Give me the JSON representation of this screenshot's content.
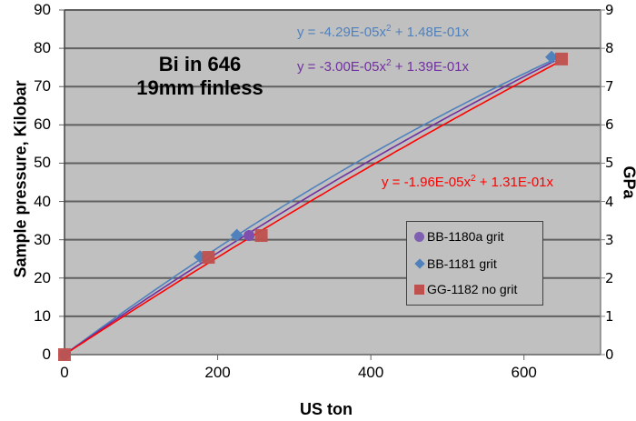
{
  "chart_data": {
    "type": "scatter",
    "title": "",
    "annotation": [
      "Bi in 646",
      "19mm finless"
    ],
    "xlabel": "US ton",
    "ylabel": "Sample pressure, Kilobar",
    "y2label": "GPa",
    "xlim": [
      0,
      700
    ],
    "ylim": [
      0,
      90
    ],
    "y2lim": [
      0,
      9
    ],
    "xticks": [
      0,
      200,
      400,
      600
    ],
    "yticks": [
      0,
      10,
      20,
      30,
      40,
      50,
      60,
      70,
      80,
      90
    ],
    "y2ticks": [
      0,
      1,
      2,
      3,
      4,
      5,
      6,
      7,
      8,
      9
    ],
    "grid": "horizontal",
    "background": "#c0c0c0",
    "legend_position": "lower right inside",
    "series": [
      {
        "name": "BB-1180a grit",
        "marker": "circle",
        "color": "#7f4fb0",
        "line_color": "#7030a0",
        "points": [
          [
            0,
            0
          ],
          [
            241,
            31.1
          ]
        ],
        "trend": {
          "a": -3e-05,
          "b": 0.139
        },
        "equation": "y = -3.00E-05x",
        "equation_tail": " + 1.39E-01x"
      },
      {
        "name": "BB-1181 grit",
        "marker": "diamond",
        "color": "#4f81bd",
        "line_color": "#4f81bd",
        "points": [
          [
            0,
            0
          ],
          [
            177,
            25.6
          ],
          [
            225,
            31.2
          ],
          [
            636,
            77.7
          ]
        ],
        "trend": {
          "a": -4.29e-05,
          "b": 0.148
        },
        "equation": "y = -4.29E-05x",
        "equation_tail": " + 1.48E-01x"
      },
      {
        "name": "GG-1182 no grit",
        "marker": "square",
        "color": "#c0504d",
        "line_color": "#ff0000",
        "points": [
          [
            0,
            0
          ],
          [
            188,
            25.4
          ],
          [
            257,
            31.1
          ],
          [
            649,
            77.2
          ]
        ],
        "trend": {
          "a": -1.96e-05,
          "b": 0.131
        },
        "equation": "y = -1.96E-05x",
        "equation_tail": " + 1.31E-01x"
      }
    ]
  },
  "labels": {
    "annotation_line1": "Bi in 646",
    "annotation_line2": "19mm finless",
    "xlabel": "US ton",
    "ylabel": "Sample pressure, Kilobar",
    "y2label": "GPa",
    "sup2": "2"
  }
}
